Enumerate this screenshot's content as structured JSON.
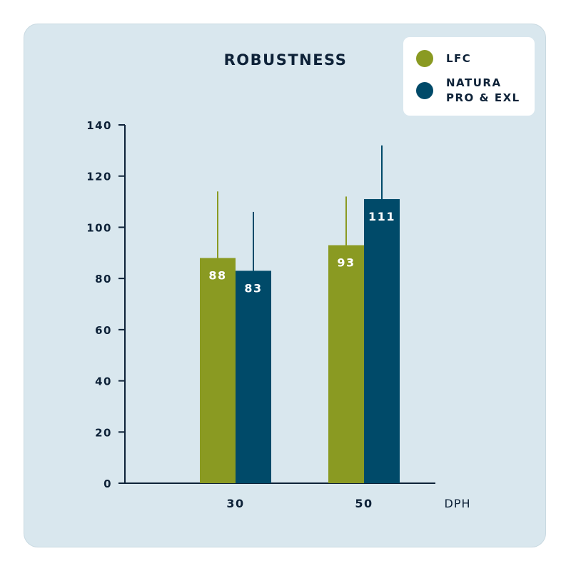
{
  "colors": {
    "background": "#d9e7ee",
    "series_lfc": "#8a9a22",
    "series_natura": "#004a69",
    "text": "#0e2238",
    "axis": "#0e2238"
  },
  "chart_data": {
    "type": "bar",
    "title": "ROBUSTNESS",
    "xlabel": "DPH",
    "ylabel": "",
    "categories": [
      "30",
      "50"
    ],
    "ylim": [
      0,
      140
    ],
    "yticks": [
      "0",
      "20",
      "40",
      "60",
      "80",
      "100",
      "120",
      "140"
    ],
    "grid": false,
    "legend_position": "top-right",
    "series": [
      {
        "name": "LFC",
        "values": [
          88,
          93
        ],
        "labels": [
          "88",
          "93"
        ],
        "error_upper": [
          114,
          112
        ]
      },
      {
        "name": "NATURA\nPRO & EXL",
        "values": [
          83,
          111
        ],
        "labels": [
          "83",
          "111"
        ],
        "error_upper": [
          106,
          132
        ]
      }
    ]
  }
}
